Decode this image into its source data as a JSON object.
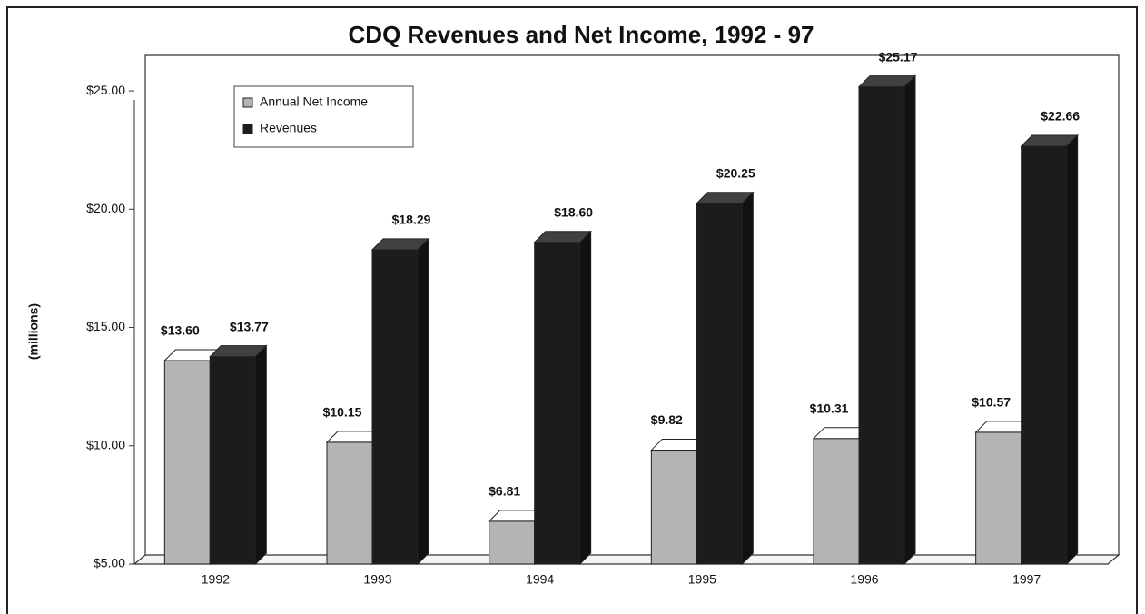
{
  "chart_data": {
    "type": "bar3d",
    "title": "CDQ Revenues and Net Income, 1992 - 97",
    "y_label": "(millions)",
    "categories": [
      "1992",
      "1993",
      "1994",
      "1995",
      "1996",
      "1997"
    ],
    "series": [
      {
        "name": "Annual Net Income",
        "color": "#b4b4b4",
        "values": [
          13.6,
          10.15,
          6.81,
          9.82,
          10.31,
          10.57
        ],
        "value_labels": [
          "$13.60",
          "$10.15",
          "$6.81",
          "$9.82",
          "$10.31",
          "$10.57"
        ]
      },
      {
        "name": "Revenues",
        "color": "#1c1c1c",
        "values": [
          13.77,
          18.29,
          18.6,
          20.25,
          25.17,
          22.66
        ],
        "value_labels": [
          "$13.77",
          "$18.29",
          "$18.60",
          "$20.25",
          "$25.17",
          "$22.66"
        ]
      }
    ],
    "ylim": [
      5,
      26.5
    ],
    "yticks": [
      {
        "value": 5,
        "label": "$5.00"
      },
      {
        "value": 10,
        "label": "$10.00"
      },
      {
        "value": 15,
        "label": "$15.00"
      },
      {
        "value": 20,
        "label": "$20.00"
      },
      {
        "value": 25,
        "label": "$25.00"
      }
    ],
    "grid": false,
    "legend": "upper-left"
  }
}
